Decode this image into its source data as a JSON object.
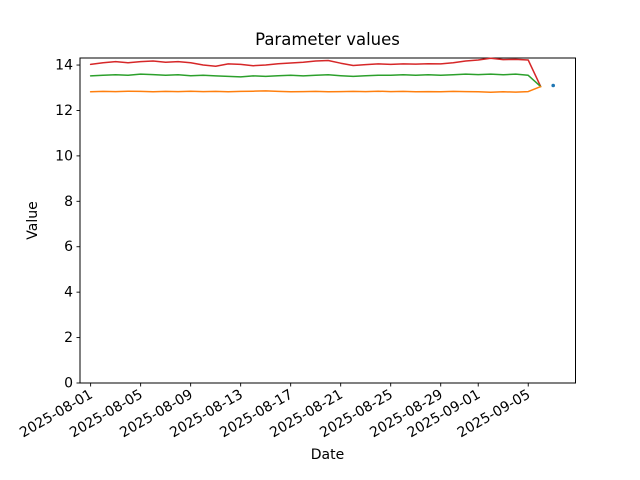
{
  "title": "Parameter values",
  "chart_data": {
    "type": "line",
    "title": "Parameter values",
    "xlabel": "Date",
    "ylabel": "Value",
    "grid": false,
    "legend": "none",
    "x_axis_start_date": "2025-08-01",
    "x_tick_labels": [
      "2025-08-01",
      "2025-08-05",
      "2025-08-09",
      "2025-08-13",
      "2025-08-17",
      "2025-08-21",
      "2025-08-25",
      "2025-08-29",
      "2025-09-01",
      "2025-09-05"
    ],
    "x_tick_days": [
      0,
      4,
      8,
      12,
      16,
      20,
      24,
      28,
      31,
      35
    ],
    "x_tick_rotation_deg": 30,
    "xlim_days": [
      -0.85,
      38.78
    ],
    "y_ticks": [
      0,
      2,
      4,
      6,
      8,
      10,
      12,
      14
    ],
    "ylim": [
      0,
      14.31
    ],
    "series": [
      {
        "name": "red-line",
        "color": "#d62728",
        "x_start_day": 0,
        "start_date": "2025-08-01",
        "end_date": "2025-09-06",
        "values": [
          14.03,
          14.1,
          14.15,
          14.1,
          14.15,
          14.18,
          14.12,
          14.15,
          14.1,
          14.0,
          13.95,
          14.05,
          14.03,
          13.97,
          14.0,
          14.06,
          14.09,
          14.12,
          14.18,
          14.2,
          14.08,
          13.98,
          14.02,
          14.05,
          14.03,
          14.05,
          14.04,
          14.06,
          14.05,
          14.1,
          14.18,
          14.22,
          14.3,
          14.24,
          14.25,
          14.22,
          13.05
        ]
      },
      {
        "name": "green-line",
        "color": "#2ca02c",
        "x_start_day": 0,
        "start_date": "2025-08-01",
        "end_date": "2025-09-06",
        "values": [
          13.52,
          13.55,
          13.57,
          13.55,
          13.6,
          13.58,
          13.55,
          13.57,
          13.53,
          13.55,
          13.52,
          13.5,
          13.48,
          13.52,
          13.5,
          13.53,
          13.55,
          13.52,
          13.55,
          13.57,
          13.53,
          13.5,
          13.53,
          13.55,
          13.55,
          13.57,
          13.55,
          13.57,
          13.55,
          13.57,
          13.6,
          13.58,
          13.6,
          13.57,
          13.6,
          13.55,
          13.05
        ]
      },
      {
        "name": "orange-line",
        "color": "#ff7f0e",
        "x_start_day": 0,
        "start_date": "2025-08-01",
        "end_date": "2025-09-06",
        "values": [
          12.82,
          12.84,
          12.83,
          12.85,
          12.84,
          12.82,
          12.84,
          12.83,
          12.85,
          12.83,
          12.84,
          12.82,
          12.84,
          12.85,
          12.86,
          12.84,
          12.82,
          12.83,
          12.84,
          12.82,
          12.83,
          12.84,
          12.83,
          12.85,
          12.83,
          12.84,
          12.82,
          12.83,
          12.82,
          12.84,
          12.83,
          12.82,
          12.8,
          12.82,
          12.81,
          12.83,
          13.05
        ]
      },
      {
        "name": "blue-point",
        "color": "#1f77b4",
        "x_start_day": 37,
        "start_date": "2025-09-07",
        "end_date": "2025-09-07",
        "values": [
          13.1
        ]
      }
    ]
  }
}
